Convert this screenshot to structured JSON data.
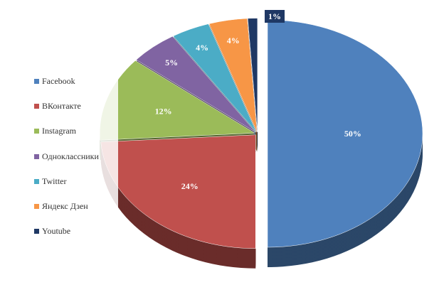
{
  "chart_data": {
    "type": "pie",
    "style": "3d-exploded",
    "categories": [
      "Facebook",
      "ВКонтакте",
      "Instagram",
      "Одноклассники",
      "Twitter",
      "Яндекс Дзен",
      "Youtube"
    ],
    "values": [
      50,
      24,
      12,
      5,
      4,
      4,
      1
    ],
    "labels": [
      "50%",
      "24%",
      "12%",
      "5%",
      "4%",
      "4%",
      "1%"
    ],
    "colors": [
      "#4f81bd",
      "#c0504d",
      "#9bbb59",
      "#8064a2",
      "#4bacc6",
      "#f79646",
      "#1f3864"
    ],
    "legend_position": "left"
  }
}
